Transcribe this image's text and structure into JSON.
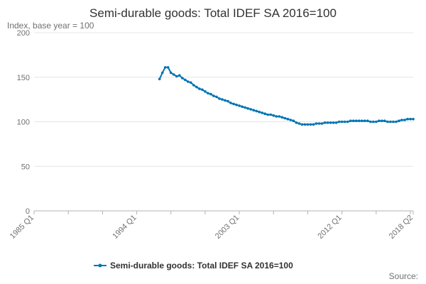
{
  "chart_data": {
    "type": "line",
    "title": "Semi-durable goods: Total IDEF SA 2016=100",
    "subtitle": "Index, base year = 100",
    "ylim": [
      0,
      200
    ],
    "yticks": [
      0,
      50,
      100,
      150,
      200
    ],
    "xlim": [
      1985.0,
      2018.25
    ],
    "xticks": [
      {
        "label": "1985 Q1",
        "x": 1985.0
      },
      {
        "label": "1994 Q1",
        "x": 1994.0
      },
      {
        "label": "2003 Q1",
        "x": 2003.0
      },
      {
        "label": "2012 Q1",
        "x": 2012.0
      },
      {
        "label": "2018 Q2",
        "x": 2018.25
      }
    ],
    "grid": "horizontal",
    "legend_position": "bottom",
    "series": [
      {
        "name": "Semi-durable goods: Total IDEF SA 2016=100",
        "color": "#0075b3",
        "x": [
          1996.0,
          1996.25,
          1996.5,
          1996.75,
          1997.0,
          1997.25,
          1997.5,
          1997.75,
          1998.0,
          1998.25,
          1998.5,
          1998.75,
          1999.0,
          1999.25,
          1999.5,
          1999.75,
          2000.0,
          2000.25,
          2000.5,
          2000.75,
          2001.0,
          2001.25,
          2001.5,
          2001.75,
          2002.0,
          2002.25,
          2002.5,
          2002.75,
          2003.0,
          2003.25,
          2003.5,
          2003.75,
          2004.0,
          2004.25,
          2004.5,
          2004.75,
          2005.0,
          2005.25,
          2005.5,
          2005.75,
          2006.0,
          2006.25,
          2006.5,
          2006.75,
          2007.0,
          2007.25,
          2007.5,
          2007.75,
          2008.0,
          2008.25,
          2008.5,
          2008.75,
          2009.0,
          2009.25,
          2009.5,
          2009.75,
          2010.0,
          2010.25,
          2010.5,
          2010.75,
          2011.0,
          2011.25,
          2011.5,
          2011.75,
          2012.0,
          2012.25,
          2012.5,
          2012.75,
          2013.0,
          2013.25,
          2013.5,
          2013.75,
          2014.0,
          2014.25,
          2014.5,
          2014.75,
          2015.0,
          2015.25,
          2015.5,
          2015.75,
          2016.0,
          2016.25,
          2016.5,
          2016.75,
          2017.0,
          2017.25,
          2017.5,
          2017.75,
          2018.0,
          2018.25
        ],
        "values": [
          148,
          155,
          161,
          161,
          155,
          153,
          151,
          152,
          149,
          147,
          145,
          144,
          141,
          139,
          137,
          136,
          134,
          132,
          131,
          129,
          128,
          126,
          125,
          124,
          123,
          121,
          120,
          119,
          118,
          117,
          116,
          115,
          114,
          113,
          112,
          111,
          110,
          109,
          108,
          108,
          107,
          106,
          106,
          105,
          104,
          103,
          102,
          101,
          99,
          98,
          97,
          97,
          97,
          97,
          97,
          98,
          98,
          98,
          99,
          99,
          99,
          99,
          99,
          100,
          100,
          100,
          100,
          101,
          101,
          101,
          101,
          101,
          101,
          101,
          100,
          100,
          100,
          101,
          101,
          101,
          100,
          100,
          100,
          100,
          101,
          102,
          102,
          103,
          103,
          103
        ]
      }
    ]
  },
  "source_label": "Source:"
}
